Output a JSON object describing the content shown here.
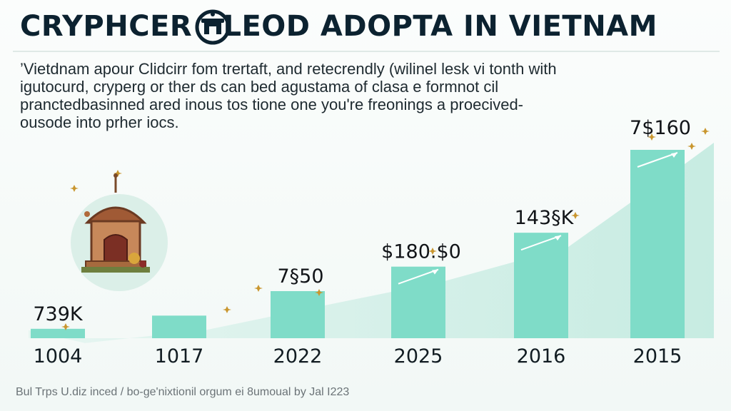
{
  "header": {
    "title": "CRYPHCER   LEOD ADOPTA IN VIETNAM",
    "subtitle": "’Vietdnam apour Clidcirr fom trertaft, and retecrendly (wilinel lesk vi tonth with igutocurd, cryperg or ther ds can bed agustama of clasa e formnot cil pranctedbasinned ared inous tos tione one you're freonings a proecived-ousode into prher iocs.",
    "footnote": "Bul Trps U.diz inced / bo-ge'nixtionil orgum ei 8umoual by Jal I223"
  },
  "icons": {
    "title_emblem": "temple-coin-icon",
    "illustration": "vietnamese-temple-icon"
  },
  "colors": {
    "bar": "#7fdcc8",
    "area": "#cfeee6",
    "title": "#0c2230",
    "sparkle": "#c9962f"
  },
  "chart_data": {
    "type": "bar",
    "title": "CRYPHCER LEOD ADOPTA IN VIETNAM",
    "xlabel": "",
    "ylabel": "",
    "categories": [
      "1004",
      "1017",
      "2022",
      "2025",
      "2016",
      "2015"
    ],
    "values": [
      5,
      12,
      25,
      38,
      56,
      100
    ],
    "data_labels": [
      "739K",
      "",
      "7§50",
      "$180.$0",
      "143§K",
      "7$160"
    ],
    "ylim": [
      0,
      100
    ],
    "grid": false,
    "legend": "none",
    "trend_area": true
  }
}
